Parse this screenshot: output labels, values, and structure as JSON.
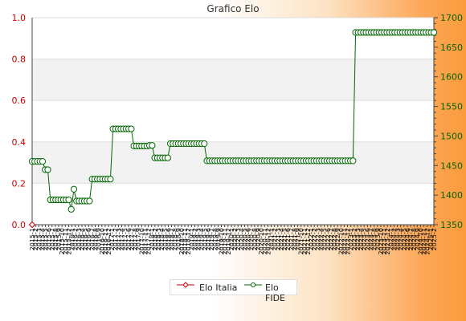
{
  "chart_data": {
    "type": "line",
    "title": "Grafico Elo",
    "xlabel": "",
    "ylabel": "",
    "y_left": {
      "range": [
        0.0,
        1.0
      ],
      "ticks": [
        "0.0",
        "0.2",
        "0.4",
        "0.6",
        "0.8",
        "1.0"
      ]
    },
    "y_right": {
      "range": [
        1350,
        1700
      ],
      "ticks": [
        "1350",
        "1400",
        "1450",
        "1500",
        "1550",
        "1600",
        "1650",
        "1700"
      ]
    },
    "x_tick_labels": [
      "2015-1",
      "2015-2",
      "2015-3",
      "2015-4",
      "2015-5",
      "2015-6",
      "2015-7",
      "2015-8",
      "2015-9",
      "2015-10",
      "2015-11",
      "2015-12",
      "2016-1",
      "2016-2",
      "2016-3",
      "2016-4",
      "2016-5",
      "2016-6",
      "2016-7",
      "2016-8",
      "2016-9",
      "2016-10",
      "2016-11",
      "2016-12",
      "2017-1",
      "2017-2",
      "2017-3",
      "2017-4",
      "2017-5",
      "2017-6",
      "2017-7",
      "2017-8",
      "2017-9",
      "2017-10",
      "2017-11",
      "2017-12",
      "2018-1",
      "2018-2",
      "2018-3",
      "2018-4",
      "2018-5",
      "2018-6",
      "2018-7",
      "2018-8",
      "2018-9",
      "2018-10",
      "2018-11",
      "2018-12",
      "2019-1",
      "2019-2",
      "2019-3",
      "2019-4",
      "2019-5",
      "2019-6",
      "2019-7",
      "2019-8",
      "2019-9",
      "2019-10",
      "2019-11",
      "2019-12",
      "2020-1",
      "2020-2",
      "2020-3",
      "2020-4",
      "2020-5",
      "2020-6",
      "2020-7",
      "2020-8",
      "2020-9",
      "2020-10",
      "2020-11",
      "2020-12",
      "2021-1",
      "2021-2",
      "2021-3",
      "2021-4",
      "2021-5",
      "2021-6",
      "2021-7",
      "2021-8",
      "2021-9",
      "2021-10",
      "2021-11",
      "2021-12",
      "2022-1",
      "2022-2",
      "2022-3",
      "2022-4",
      "2022-5",
      "2022-6",
      "2022-7",
      "2022-8",
      "2022-9",
      "2022-10",
      "2022-11",
      "2022-12",
      "2023-1",
      "2023-2",
      "2023-3",
      "2023-4",
      "2023-5",
      "2023-6",
      "2023-7",
      "2023-8",
      "2023-9",
      "2023-10",
      "2023-11",
      "2023-12",
      "2024-1",
      "2024-2",
      "2024-3",
      "2024-4",
      "2024-5",
      "2024-6",
      "2024-7",
      "2024-8",
      "2024-9",
      "2024-10",
      "2024-11",
      "2024-12",
      "2025-1",
      "2025-2"
    ],
    "grid": true,
    "legend": "bottom-center",
    "series": [
      {
        "name": "Elo Italia",
        "axis": "left",
        "color": "#cc0000",
        "values": [
          0
        ]
      },
      {
        "name": "Elo FIDE",
        "axis": "right",
        "color": "#006600",
        "values": [
          1457,
          1457,
          1457,
          1457,
          1457,
          1443,
          1443,
          1392,
          1392,
          1392,
          1392,
          1392,
          1392,
          1392,
          1392,
          1376,
          1410,
          1390,
          1390,
          1390,
          1390,
          1390,
          1390,
          1427,
          1427,
          1427,
          1427,
          1427,
          1427,
          1427,
          1427,
          1512,
          1512,
          1512,
          1512,
          1512,
          1512,
          1512,
          1512,
          1483,
          1483,
          1483,
          1483,
          1483,
          1483,
          1484,
          1484,
          1463,
          1463,
          1463,
          1463,
          1463,
          1463,
          1487,
          1487,
          1487,
          1487,
          1487,
          1487,
          1487,
          1487,
          1487,
          1487,
          1487,
          1487,
          1487,
          1487,
          1458,
          1458,
          1458,
          1458,
          1458,
          1458,
          1458,
          1458,
          1458,
          1458,
          1458,
          1458,
          1458,
          1458,
          1458,
          1458,
          1458,
          1458,
          1458,
          1458,
          1458,
          1458,
          1458,
          1458,
          1458,
          1458,
          1458,
          1458,
          1458,
          1458,
          1458,
          1458,
          1458,
          1458,
          1458,
          1458,
          1458,
          1458,
          1458,
          1458,
          1458,
          1458,
          1458,
          1458,
          1458,
          1458,
          1458,
          1458,
          1458,
          1458,
          1458,
          1458,
          1458,
          1458,
          1458,
          1458,
          1458,
          1675,
          1675,
          1675,
          1675,
          1675,
          1675,
          1675,
          1675,
          1675,
          1675,
          1675,
          1675,
          1675,
          1675,
          1675,
          1675,
          1675,
          1675,
          1675,
          1675,
          1675,
          1675,
          1675,
          1675,
          1675,
          1675,
          1675,
          1675,
          1675,
          1675,
          1675
        ]
      }
    ]
  }
}
